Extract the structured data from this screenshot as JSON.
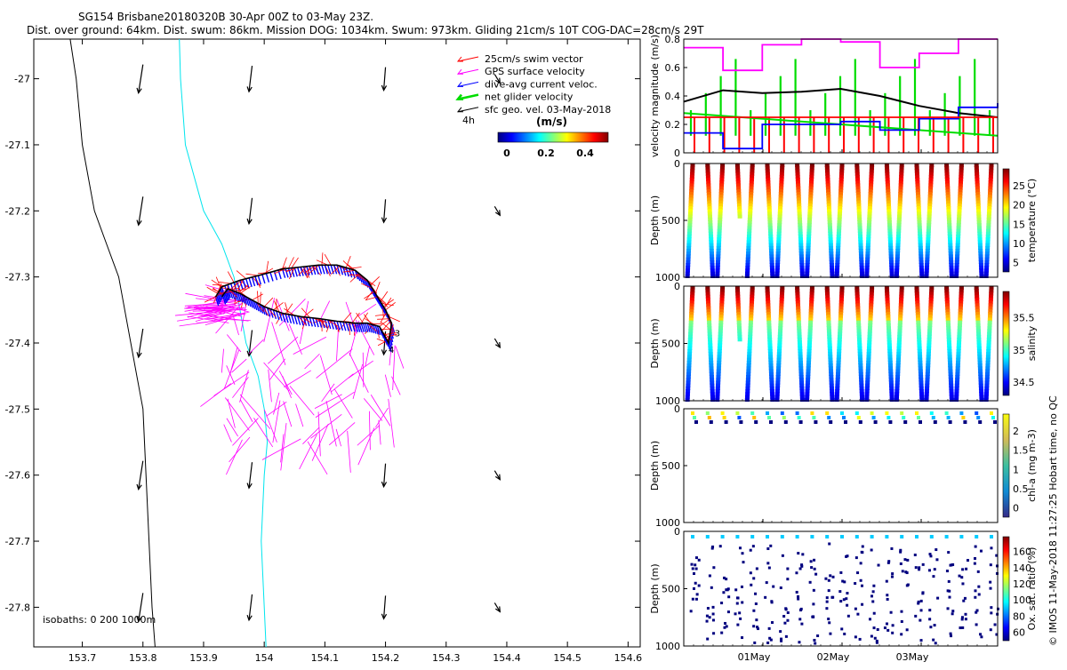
{
  "header": {
    "line1": "SG154 Brisbane20180320B 30-Apr 00Z to 03-May 23Z.",
    "line2": "Dist. over ground: 64km. Dist. swum: 86km. Mission DOG: 1034km. Swum: 973km. Gliding 21cm/s 10T COG-DAC=28cm/s 29T"
  },
  "map": {
    "xticks": [
      "153.7",
      "153.8",
      "153.9",
      "154",
      "154.1",
      "154.2",
      "154.3",
      "154.4",
      "154.5",
      "154.6"
    ],
    "yticks": [
      "-27",
      "-27.1",
      "-27.2",
      "-27.3",
      "-27.4",
      "-27.5",
      "-27.6",
      "-27.7",
      "-27.8"
    ],
    "legend": [
      {
        "label": "25cm/s swim vector",
        "color": "#ff0000"
      },
      {
        "label": "GPS surface velocity",
        "color": "#ff00ff"
      },
      {
        "label": "dive-avg current veloc.",
        "color": "#0000ff"
      },
      {
        "label": "net glider velocity",
        "color": "#00dd00"
      },
      {
        "label": "sfc geo. vel. 03-May-2018",
        "color": "#000000"
      }
    ],
    "interval_label": "4h",
    "colorbar_title": "(m/s)",
    "colorbar_ticks": [
      "0",
      "0.2",
      "0.4"
    ],
    "isobaths_label": "isobaths: 0   200  1000m",
    "waypoint_labels": [
      "3",
      "4"
    ]
  },
  "panels": {
    "velocity": {
      "ylabel": "velocity magnitude (m/s)",
      "yticks": [
        "0",
        "0.2",
        "0.4",
        "0.6",
        "0.8"
      ]
    },
    "temperature": {
      "ylabel": "Depth (m)",
      "yticks": [
        "0",
        "500",
        "1000"
      ],
      "cbar_label": "temperature (°C)",
      "cbar_ticks": [
        "5",
        "10",
        "15",
        "20",
        "25"
      ]
    },
    "salinity": {
      "ylabel": "Depth (m)",
      "yticks": [
        "0",
        "500",
        "1000"
      ],
      "cbar_label": "salinity",
      "cbar_ticks": [
        "34.5",
        "35",
        "35.5"
      ]
    },
    "chla": {
      "ylabel": "Depth (m)",
      "yticks": [
        "0",
        "500",
        "1000"
      ],
      "cbar_label": "chl-a (mg m-3)",
      "cbar_ticks": [
        "0",
        "0.5",
        "1",
        "1.5",
        "2"
      ]
    },
    "oxygen": {
      "ylabel": "Depth (m)",
      "yticks": [
        "0",
        "500",
        "1000"
      ],
      "cbar_label": "Ox. sat. ratio (%)",
      "cbar_ticks": [
        "60",
        "80",
        "100",
        "120",
        "140",
        "160"
      ],
      "xticks": [
        "01May",
        "02May",
        "03May"
      ]
    }
  },
  "credit": "© IMOS 11-May-2018 11:27:25 Hobart time, no QC",
  "chart_data": [
    {
      "type": "scatter",
      "title": "SG154 Brisbane20180320B 30-Apr 00Z to 03-May 23Z.",
      "xlim": [
        153.62,
        154.62
      ],
      "ylim": [
        -27.86,
        -26.94
      ],
      "track": {
        "x": [
          153.92,
          153.93,
          153.96,
          153.99,
          154.03,
          154.06,
          154.09,
          154.12,
          154.15,
          154.17,
          154.18,
          154.19,
          154.2,
          154.21,
          154.205,
          154.19,
          154.17,
          154.15,
          154.12,
          154.09,
          154.06,
          154.03,
          154.0,
          153.98,
          153.96,
          153.94,
          153.93
        ],
        "y": [
          -27.33,
          -27.315,
          -27.305,
          -27.298,
          -27.288,
          -27.285,
          -27.282,
          -27.282,
          -27.29,
          -27.305,
          -27.32,
          -27.335,
          -27.35,
          -27.37,
          -27.4,
          -27.375,
          -27.37,
          -27.37,
          -27.367,
          -27.363,
          -27.36,
          -27.355,
          -27.345,
          -27.335,
          -27.325,
          -27.318,
          -27.33
        ]
      },
      "bathy_0m": {
        "x": [
          153.68,
          153.69,
          153.7,
          153.72,
          153.74,
          153.76,
          153.78,
          153.79,
          153.8,
          153.805,
          153.81,
          153.815,
          153.82
        ],
        "y": [
          -26.94,
          -27.0,
          -27.1,
          -27.2,
          -27.25,
          -27.3,
          -27.4,
          -27.45,
          -27.5,
          -27.6,
          -27.7,
          -27.8,
          -27.86
        ]
      },
      "bathy_1000m": {
        "x": [
          153.86,
          153.862,
          153.87,
          153.9,
          153.93,
          153.95,
          153.97,
          153.99,
          154.0,
          154.005,
          154.0,
          153.995,
          154.0,
          154.003
        ],
        "y": [
          -26.94,
          -27.0,
          -27.1,
          -27.2,
          -27.25,
          -27.3,
          -27.4,
          -27.45,
          -27.5,
          -27.55,
          -27.6,
          -27.7,
          -27.8,
          -27.86
        ]
      },
      "sfc_vectors": {
        "lon": [
          153.8,
          153.98,
          154.2,
          154.38
        ],
        "lat": [
          -27.0,
          -27.2,
          -27.4,
          -27.6,
          -27.8
        ]
      },
      "gps_velocity_magnitude_range": [
        0,
        0.48
      ]
    },
    {
      "type": "line",
      "ylabel": "velocity magnitude (m/s)",
      "xlabel": "",
      "ylim": [
        0,
        0.8
      ],
      "x_days": [
        0,
        0.5,
        1,
        1.5,
        2,
        2.5,
        3,
        3.5,
        4
      ],
      "series": [
        {
          "name": "sfc geo. vel.",
          "values": [
            0.36,
            0.44,
            0.42,
            0.43,
            0.45,
            0.4,
            0.33,
            0.28,
            0.25
          ]
        },
        {
          "name": "dive-avg current veloc.",
          "values": [
            0.14,
            0.03,
            0.2,
            0.2,
            0.22,
            0.16,
            0.24,
            0.32,
            0.35
          ]
        },
        {
          "name": "25cm/s swim vector",
          "values": [
            0.25,
            0.25,
            0.25,
            0.25,
            0.25,
            0.25,
            0.25,
            0.25,
            0.25
          ]
        },
        {
          "name": "GPS surface velocity",
          "values": [
            0.74,
            0.58,
            0.76,
            0.8,
            0.78,
            0.6,
            0.7,
            0.8,
            0.8
          ]
        }
      ]
    },
    {
      "type": "heatmap",
      "ylabel": "Depth (m)",
      "ylim": [
        1000,
        0
      ],
      "variable": "temperature",
      "clim": [
        4,
        27
      ],
      "profiles": 21
    },
    {
      "type": "heatmap",
      "ylabel": "Depth (m)",
      "ylim": [
        1000,
        0
      ],
      "variable": "salinity",
      "clim": [
        34.3,
        35.8
      ],
      "profiles": 21
    },
    {
      "type": "heatmap",
      "ylabel": "Depth (m)",
      "ylim": [
        1000,
        0
      ],
      "variable": "chl-a",
      "clim": [
        0,
        2
      ],
      "profiles": 21
    },
    {
      "type": "heatmap",
      "ylabel": "Depth (m)",
      "ylim": [
        1000,
        0
      ],
      "variable": "Ox. sat. ratio",
      "clim": [
        60,
        170
      ],
      "xticks": [
        "01May",
        "02May",
        "03May"
      ]
    }
  ]
}
